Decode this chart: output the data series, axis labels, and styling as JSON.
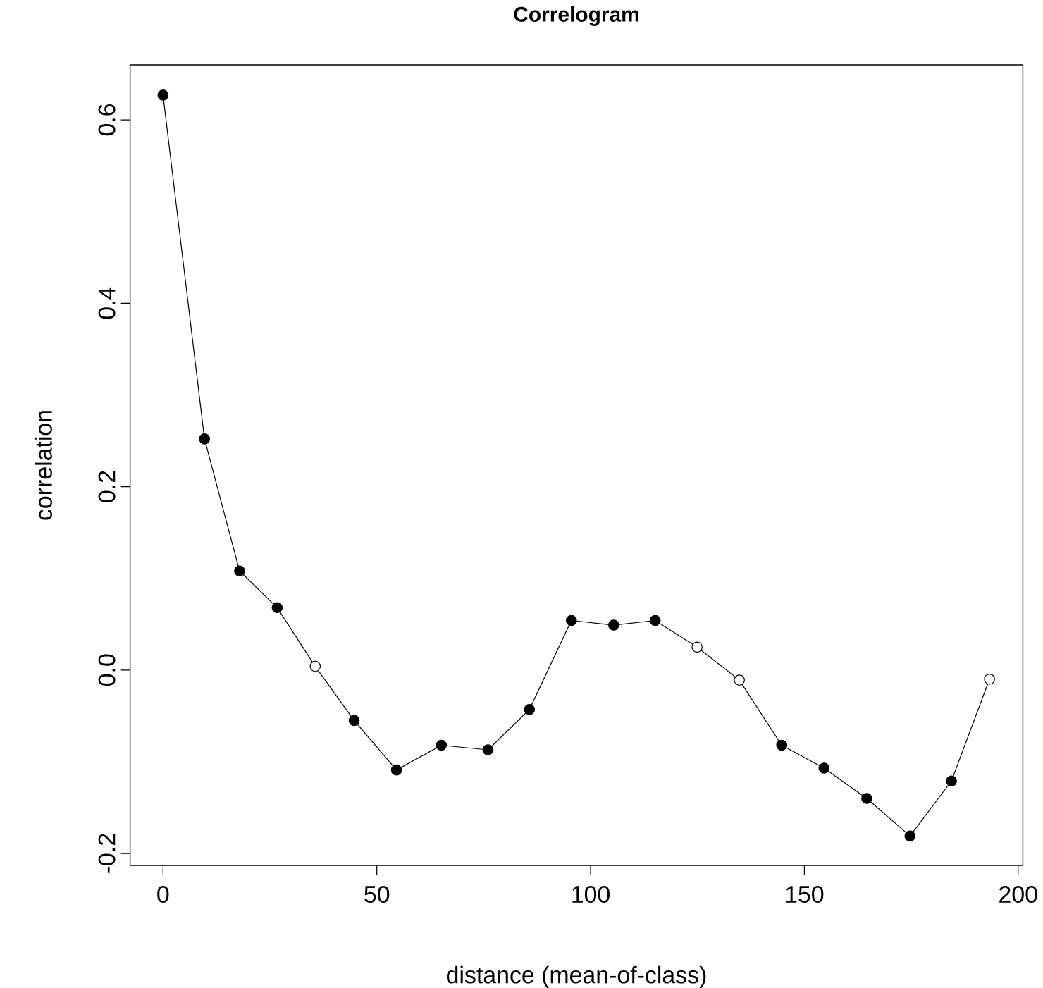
{
  "chart_data": {
    "type": "line",
    "title": "Correlogram",
    "xlabel": "distance (mean-of-class)",
    "ylabel": "correlation",
    "x": [
      0,
      9.7,
      17.9,
      26.7,
      35.6,
      44.7,
      54.6,
      65.1,
      76.0,
      85.7,
      95.5,
      105.4,
      115.1,
      124.9,
      134.8,
      144.7,
      154.6,
      164.6,
      174.7,
      184.4,
      193.3
    ],
    "series": [
      {
        "color": "#000000",
        "values": [
          0.627,
          0.252,
          0.108,
          0.068,
          0.004,
          -0.055,
          -0.109,
          -0.082,
          -0.087,
          -0.043,
          0.054,
          0.049,
          0.054,
          0.025,
          -0.011,
          -0.082,
          -0.107,
          -0.14,
          -0.181,
          -0.121,
          -0.01
        ],
        "colors": [
          "#000000",
          "#000000",
          "#000000",
          "#000000",
          "#ffffff",
          "#000000",
          "#000000",
          "#000000",
          "#000000",
          "#000000",
          "#000000",
          "#000000",
          "#000000",
          "#ffffff",
          "#ffffff",
          "#000000",
          "#000000",
          "#000000",
          "#000000",
          "#000000",
          "#ffffff"
        ]
      }
    ],
    "xlim": [
      -7.7,
      201.1
    ],
    "ylim": [
      -0.213,
      0.66
    ],
    "xticks": [
      0,
      50,
      100,
      150,
      200
    ],
    "yticks": [
      -0.2,
      {
        "value": 0,
        "label": "0.0"
      },
      0.2,
      0.4,
      0.6
    ],
    "marker": "circle",
    "line_style": "solid",
    "grid": false
  }
}
